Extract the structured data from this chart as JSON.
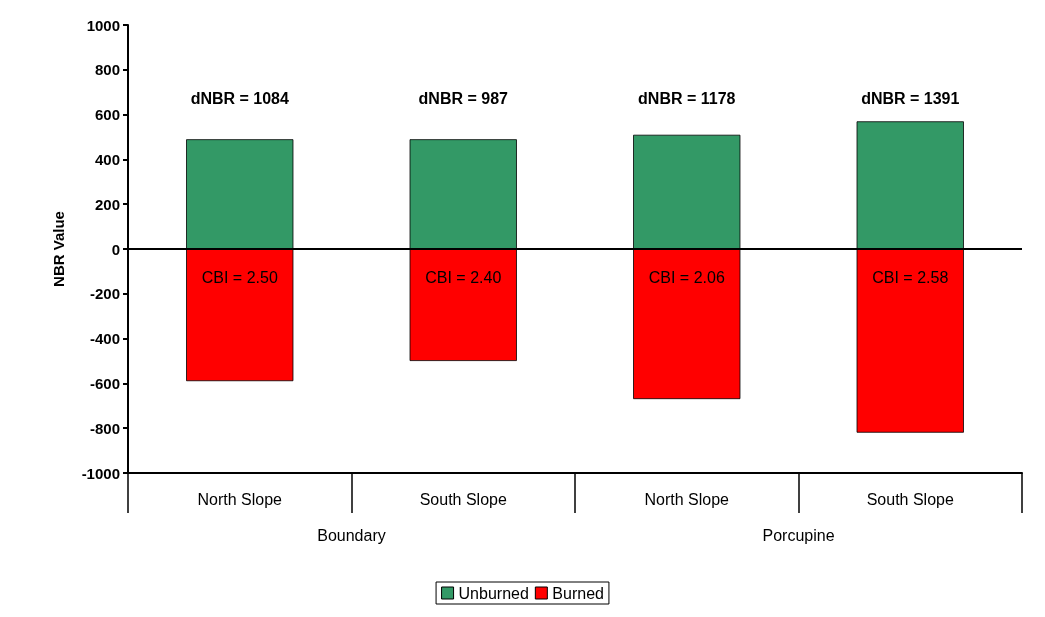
{
  "chart_data": {
    "type": "bar",
    "stacked": true,
    "ylabel": "NBR Value",
    "categories": [
      "North Slope",
      "South Slope",
      "North Slope",
      "South Slope"
    ],
    "series": [
      {
        "name": "Unburned",
        "color": "#339966",
        "values": [
          490,
          490,
          510,
          570
        ]
      },
      {
        "name": "Burned",
        "color": "#ff0000",
        "values": [
          -590,
          -500,
          -670,
          -820
        ]
      }
    ],
    "ylim": [
      -1000,
      1000
    ],
    "yticks": [
      -1000,
      -800,
      -600,
      -400,
      -200,
      0,
      200,
      400,
      600,
      800,
      1000
    ],
    "grid": false,
    "legend": "bottom",
    "ref_lines": [
      {
        "axis": "y",
        "value": 0
      }
    ],
    "annotations": [
      "dNBR = 1084",
      "dNBR = 987",
      "dNBR = 1178",
      "dNBR = 1391",
      "CBI = 2.50",
      "CBI = 2.40",
      "CBI = 2.06",
      "CBI = 2.58",
      "Boundary",
      "Porcupine"
    ]
  }
}
